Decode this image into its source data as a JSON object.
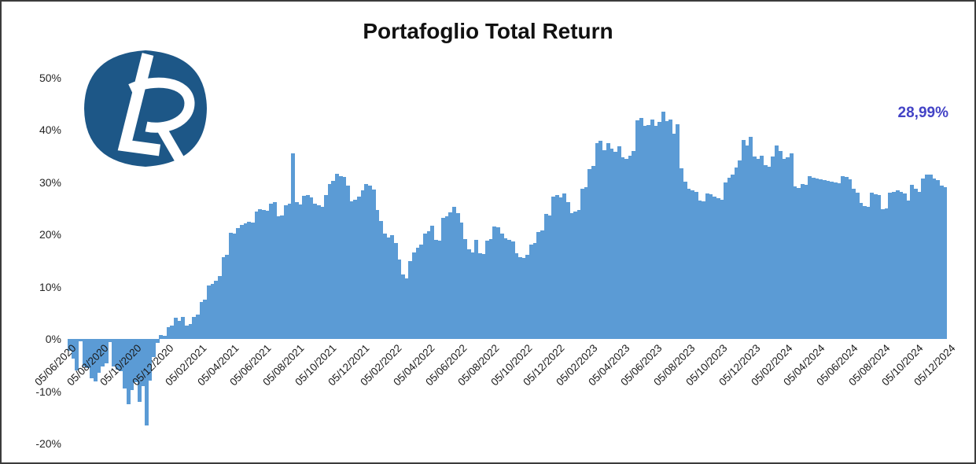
{
  "title": "Portafoglio Total Return",
  "logo": {
    "text": "LR",
    "bg_color": "#1d5787",
    "letter_color": "#ffffff"
  },
  "final_label": {
    "text": "28,99%",
    "color": "#4343c6"
  },
  "chart_data": {
    "type": "bar",
    "title": "Portafoglio Total Return",
    "xlabel": "",
    "ylabel": "",
    "unit": "%",
    "bar_color": "#5b9bd5",
    "grid": false,
    "legend": false,
    "ylim": [
      -20,
      50
    ],
    "y_ticks": [
      {
        "label": "50%",
        "value": 50
      },
      {
        "label": "40%",
        "value": 40
      },
      {
        "label": "30%",
        "value": 30
      },
      {
        "label": "20%",
        "value": 20
      },
      {
        "label": "10%",
        "value": 10
      },
      {
        "label": "0%",
        "value": 0
      },
      {
        "label": "-10%",
        "value": -10
      },
      {
        "label": "-20%",
        "value": -20
      }
    ],
    "x_labels": [
      "05/06/2020",
      "05/08/2020",
      "05/10/2020",
      "05/12/2020",
      "05/02/2021",
      "05/04/2021",
      "05/06/2021",
      "05/08/2021",
      "05/10/2021",
      "05/12/2021",
      "05/02/2022",
      "05/04/2022",
      "05/06/2022",
      "05/08/2022",
      "05/10/2022",
      "05/12/2022",
      "05/02/2023",
      "05/04/2023",
      "05/06/2023",
      "05/08/2023",
      "05/10/2023",
      "05/12/2023",
      "05/02/2024",
      "05/04/2024",
      "05/06/2024",
      "05/08/2024",
      "05/10/2024",
      "05/12/2024"
    ],
    "sampling": "weekly total return, % since 05/06/2020",
    "final_value_label": "28,99%",
    "values": [
      -2.2,
      -3.8,
      -6.0,
      -0.4,
      -5.3,
      -5.6,
      -7.5,
      -8.1,
      -6.5,
      -5.2,
      -4.6,
      -0.6,
      -5.2,
      -5.8,
      -6.2,
      -9.5,
      -12.5,
      -9.8,
      -8.2,
      -12.0,
      -9.0,
      -16.5,
      -8.0,
      -3.5,
      -0.8,
      0.8,
      0.6,
      2.2,
      2.6,
      4.1,
      3.4,
      4.2,
      2.5,
      2.9,
      4.2,
      4.6,
      7.1,
      7.6,
      10.2,
      10.6,
      11.2,
      12.1,
      15.6,
      16.1,
      20.3,
      20.1,
      21.2,
      21.8,
      22.1,
      22.4,
      22.3,
      24.4,
      24.8,
      24.6,
      24.5,
      25.9,
      26.1,
      23.4,
      23.6,
      25.6,
      25.8,
      35.5,
      26.2,
      25.7,
      27.4,
      27.6,
      27.1,
      25.8,
      25.6,
      25.2,
      27.5,
      29.6,
      30.2,
      31.6,
      31.2,
      31.0,
      29.3,
      26.3,
      26.6,
      27.2,
      28.4,
      29.7,
      29.4,
      28.6,
      24.7,
      22.6,
      20.2,
      19.4,
      19.9,
      18.3,
      15.2,
      12.4,
      11.6,
      14.9,
      16.6,
      17.4,
      18.1,
      20.1,
      20.6,
      21.6,
      18.9,
      18.8,
      23.1,
      23.4,
      24.2,
      25.3,
      24.1,
      22.2,
      19.1,
      17.2,
      16.6,
      18.9,
      16.4,
      16.3,
      18.8,
      19.1,
      21.5,
      21.3,
      20.1,
      19.2,
      18.9,
      18.7,
      16.4,
      15.6,
      15.5,
      16.1,
      18.0,
      18.4,
      20.4,
      20.7,
      23.9,
      23.6,
      27.3,
      27.6,
      27.1,
      27.9,
      26.1,
      24.0,
      24.4,
      24.6,
      28.7,
      29.1,
      32.5,
      33.1,
      37.5,
      37.9,
      36.1,
      37.4,
      36.4,
      35.8,
      36.9,
      34.7,
      34.5,
      35.0,
      35.9,
      41.8,
      42.2,
      40.7,
      40.9,
      42.0,
      40.7,
      41.5,
      43.5,
      41.7,
      42.0,
      39.2,
      41.0,
      32.6,
      30.1,
      28.7,
      28.5,
      28.1,
      26.4,
      26.3,
      27.9,
      27.7,
      27.2,
      26.9,
      26.6,
      30.0,
      30.8,
      31.5,
      32.8,
      34.2,
      38.1,
      37.0,
      38.6,
      34.9,
      34.4,
      35.1,
      33.2,
      33.0,
      34.9,
      37.0,
      35.9,
      34.4,
      34.7,
      35.5,
      29.2,
      28.9,
      29.7,
      29.5,
      31.1,
      30.9,
      30.7,
      30.5,
      30.4,
      30.3,
      30.1,
      29.9,
      29.8,
      31.1,
      31.0,
      30.5,
      28.7,
      28.0,
      26.0,
      25.4,
      25.3,
      28.0,
      27.7,
      27.5,
      24.8,
      25.0,
      28.0,
      28.2,
      28.5,
      28.1,
      27.8,
      26.4,
      29.5,
      28.7,
      28.1,
      30.7,
      31.5,
      31.4,
      30.7,
      30.4,
      29.3,
      28.99
    ]
  }
}
